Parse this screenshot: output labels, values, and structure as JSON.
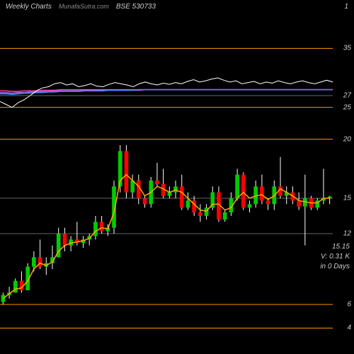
{
  "header": {
    "title": "Weekly Charts",
    "site": "MunafaSutra.com",
    "symbol": "BSE 530733",
    "page": "1"
  },
  "colors": {
    "background": "#000000",
    "grid_major": "#ff9900",
    "grid_minor": "#666666",
    "text": "#cccccc",
    "candle_up": "#00cc00",
    "candle_down": "#ff0000",
    "candle_wick": "#ffffff",
    "ma_line": "#ffaa00",
    "ind_line1": "#ffffff",
    "ind_line2": "#4488ff",
    "ind_line3": "#ff44aa",
    "ind_line4": "#aa66ff"
  },
  "upper": {
    "ylim": [
      24,
      36
    ],
    "gridlines": [
      {
        "y": 25,
        "color": "#ff9900"
      },
      {
        "y": 27,
        "color": "#666666"
      },
      {
        "y": 35,
        "color": "#ff9900"
      }
    ],
    "lines": {
      "white": [
        26,
        25.5,
        25,
        25.8,
        26.3,
        27,
        27.8,
        28.3,
        28.5,
        29,
        29.2,
        28.8,
        29,
        28.5,
        28.7,
        29,
        28.6,
        28.5,
        28.9,
        29.2,
        29,
        28.8,
        28.5,
        29,
        29.3,
        29,
        28.8,
        29.1,
        28.9,
        29.2,
        29,
        29.4,
        29.7,
        29.3,
        29.5,
        29.8,
        30,
        29.6,
        29.3,
        29.5,
        29,
        29.2,
        29.4,
        29,
        29.3,
        29.1,
        29.5,
        29.2,
        29,
        29.3,
        29.5,
        29.2,
        29,
        29.3,
        29.6,
        29.3
      ],
      "blue": [
        27.3,
        27.3,
        27.2,
        27.3,
        27.4,
        27.4,
        27.5,
        27.5,
        27.6,
        27.6,
        27.7,
        27.7,
        27.7,
        27.7,
        27.8,
        27.8,
        27.8,
        27.8,
        27.9,
        27.9,
        27.9,
        27.9,
        27.9,
        28,
        28,
        28,
        28,
        28,
        28,
        28,
        28,
        28,
        28,
        28,
        28,
        28,
        28,
        28,
        28,
        28,
        28,
        28,
        28,
        28,
        28,
        28,
        28,
        28,
        28,
        28,
        28,
        28,
        28,
        28,
        28,
        28
      ],
      "pink": [
        27.8,
        27.8,
        27.7,
        27.7,
        27.8,
        27.8,
        27.8,
        27.9,
        27.9,
        27.9,
        28,
        28,
        28,
        28,
        28,
        28,
        28,
        28,
        28,
        28,
        28,
        28,
        28,
        28,
        28,
        28,
        28,
        28,
        28,
        28,
        28,
        28,
        28,
        28,
        28,
        28,
        28,
        28,
        28,
        28,
        28,
        28,
        28,
        28,
        28,
        28,
        28,
        28,
        28,
        28,
        28,
        28,
        28,
        28,
        28,
        28
      ],
      "purple": [
        27.5,
        27.5,
        27.4,
        27.5,
        27.5,
        27.6,
        27.6,
        27.7,
        27.7,
        27.8,
        27.8,
        27.8,
        27.8,
        27.8,
        27.9,
        27.9,
        27.9,
        27.9,
        27.9,
        27.9,
        27.9,
        27.9,
        27.9,
        27.9,
        28,
        28,
        28,
        28,
        28,
        28,
        28,
        28,
        28,
        28,
        28,
        28,
        28,
        28,
        28,
        28,
        28,
        28,
        28,
        28,
        28,
        28,
        28,
        28,
        28,
        28,
        28,
        28,
        28,
        28,
        28,
        28
      ]
    }
  },
  "lower": {
    "ylim": [
      3,
      21
    ],
    "gridlines": [
      {
        "y": 4,
        "color": "#ff9900"
      },
      {
        "y": 6,
        "color": "#ff9900"
      },
      {
        "y": 12,
        "color": "#666666"
      },
      {
        "y": 15,
        "color": "#666666"
      },
      {
        "y": 20,
        "color": "#ff9900"
      }
    ],
    "candles": [
      {
        "o": 6.2,
        "h": 7.0,
        "l": 6.0,
        "c": 6.8
      },
      {
        "o": 6.8,
        "h": 7.5,
        "l": 6.5,
        "c": 7.0
      },
      {
        "o": 7.0,
        "h": 8.2,
        "l": 7.0,
        "c": 8.0
      },
      {
        "o": 8.0,
        "h": 8.8,
        "l": 7.0,
        "c": 7.2
      },
      {
        "o": 7.2,
        "h": 9.5,
        "l": 7.2,
        "c": 9.2
      },
      {
        "o": 9.2,
        "h": 10.5,
        "l": 8.8,
        "c": 10.0
      },
      {
        "o": 10.0,
        "h": 11.5,
        "l": 9.0,
        "c": 9.2
      },
      {
        "o": 9.2,
        "h": 10.0,
        "l": 8.5,
        "c": 9.5
      },
      {
        "o": 9.5,
        "h": 11.0,
        "l": 9.0,
        "c": 10.0
      },
      {
        "o": 10.0,
        "h": 12.5,
        "l": 10.0,
        "c": 12.0
      },
      {
        "o": 12.0,
        "h": 12.5,
        "l": 10.5,
        "c": 11.0
      },
      {
        "o": 11.0,
        "h": 11.8,
        "l": 10.5,
        "c": 11.5
      },
      {
        "o": 11.5,
        "h": 13.0,
        "l": 11.0,
        "c": 11.2
      },
      {
        "o": 11.2,
        "h": 11.8,
        "l": 10.8,
        "c": 11.5
      },
      {
        "o": 11.5,
        "h": 12.0,
        "l": 11.0,
        "c": 11.8
      },
      {
        "o": 11.8,
        "h": 13.5,
        "l": 11.5,
        "c": 13.0
      },
      {
        "o": 13.0,
        "h": 13.5,
        "l": 12.0,
        "c": 12.2
      },
      {
        "o": 12.2,
        "h": 12.8,
        "l": 11.8,
        "c": 12.5
      },
      {
        "o": 12.5,
        "h": 16.5,
        "l": 12.0,
        "c": 16.0
      },
      {
        "o": 16.0,
        "h": 19.5,
        "l": 15.5,
        "c": 19.0
      },
      {
        "o": 19.0,
        "h": 19.5,
        "l": 15.0,
        "c": 15.5
      },
      {
        "o": 15.5,
        "h": 17.0,
        "l": 15.0,
        "c": 16.5
      },
      {
        "o": 16.5,
        "h": 17.0,
        "l": 14.5,
        "c": 15.0
      },
      {
        "o": 15.0,
        "h": 15.2,
        "l": 14.2,
        "c": 14.5
      },
      {
        "o": 14.5,
        "h": 16.8,
        "l": 14.2,
        "c": 16.5
      },
      {
        "o": 16.5,
        "h": 18.0,
        "l": 16.0,
        "c": 16.2
      },
      {
        "o": 16.2,
        "h": 17.5,
        "l": 15.0,
        "c": 15.2
      },
      {
        "o": 15.2,
        "h": 16.0,
        "l": 15.0,
        "c": 15.5
      },
      {
        "o": 15.5,
        "h": 16.5,
        "l": 15.0,
        "c": 16.0
      },
      {
        "o": 16.0,
        "h": 17.0,
        "l": 14.0,
        "c": 14.2
      },
      {
        "o": 14.2,
        "h": 15.5,
        "l": 14.0,
        "c": 14.8
      },
      {
        "o": 14.8,
        "h": 15.2,
        "l": 13.5,
        "c": 13.8
      },
      {
        "o": 13.8,
        "h": 14.5,
        "l": 13.0,
        "c": 13.5
      },
      {
        "o": 13.5,
        "h": 14.5,
        "l": 13.2,
        "c": 14.2
      },
      {
        "o": 14.2,
        "h": 16.0,
        "l": 14.0,
        "c": 15.5
      },
      {
        "o": 15.5,
        "h": 16.0,
        "l": 13.0,
        "c": 13.2
      },
      {
        "o": 13.2,
        "h": 14.0,
        "l": 13.0,
        "c": 13.8
      },
      {
        "o": 13.8,
        "h": 15.5,
        "l": 13.5,
        "c": 15.0
      },
      {
        "o": 15.0,
        "h": 17.5,
        "l": 14.8,
        "c": 17.0
      },
      {
        "o": 17.0,
        "h": 17.2,
        "l": 14.0,
        "c": 14.2
      },
      {
        "o": 14.2,
        "h": 14.8,
        "l": 13.8,
        "c": 14.5
      },
      {
        "o": 14.5,
        "h": 16.5,
        "l": 14.2,
        "c": 16.0
      },
      {
        "o": 16.0,
        "h": 17.0,
        "l": 14.5,
        "c": 14.8
      },
      {
        "o": 14.8,
        "h": 15.0,
        "l": 14.0,
        "c": 14.5
      },
      {
        "o": 14.5,
        "h": 16.5,
        "l": 14.0,
        "c": 16.0
      },
      {
        "o": 16.0,
        "h": 18.5,
        "l": 15.0,
        "c": 15.2
      },
      {
        "o": 15.2,
        "h": 16.0,
        "l": 14.5,
        "c": 15.5
      },
      {
        "o": 15.5,
        "h": 16.0,
        "l": 14.5,
        "c": 14.8
      },
      {
        "o": 14.8,
        "h": 15.5,
        "l": 14.0,
        "c": 14.3
      },
      {
        "o": 14.3,
        "h": 17.0,
        "l": 11.0,
        "c": 15.0
      },
      {
        "o": 15.0,
        "h": 15.2,
        "l": 14.0,
        "c": 14.2
      },
      {
        "o": 14.2,
        "h": 15.0,
        "l": 14.0,
        "c": 14.8
      },
      {
        "o": 14.8,
        "h": 17.5,
        "l": 14.5,
        "c": 15.0
      },
      {
        "o": 15.0,
        "h": 15.2,
        "l": 14.5,
        "c": 15.15
      }
    ],
    "ma": [
      6.5,
      6.9,
      7.3,
      7.4,
      8.0,
      9.0,
      9.5,
      9.3,
      9.6,
      10.5,
      11.0,
      11.2,
      11.3,
      11.4,
      11.6,
      12.2,
      12.5,
      12.4,
      13.8,
      16.5,
      17.0,
      16.5,
      16.0,
      15.2,
      15.5,
      16.0,
      15.8,
      15.5,
      15.7,
      15.5,
      15.0,
      14.5,
      14.0,
      13.9,
      14.5,
      14.5,
      14.0,
      14.2,
      15.0,
      15.5,
      15.0,
      15.2,
      15.3,
      14.9,
      15.2,
      15.8,
      15.5,
      15.2,
      14.8,
      14.7,
      14.6,
      14.6,
      15.0,
      15.0
    ]
  },
  "info": {
    "price": "15.15",
    "volume": "V: 0.31 K",
    "period": "in  0 Days"
  }
}
